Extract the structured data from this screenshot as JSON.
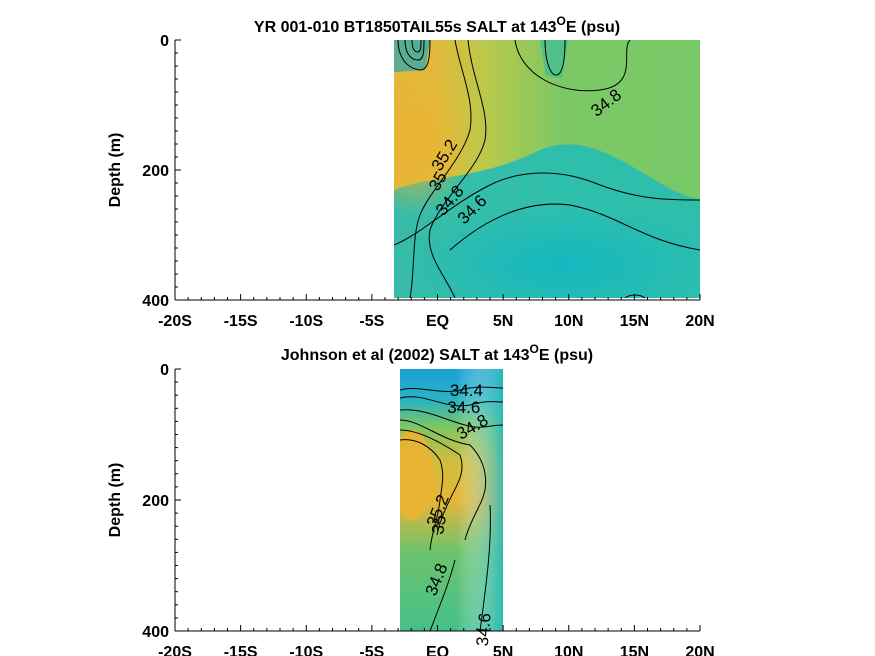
{
  "chart_data": [
    {
      "type": "contour",
      "title_main": "YR 001-010 BT1850TAIL55s SALT at 143",
      "title_sup": "O",
      "title_tail": "E (psu)",
      "xlabel": "",
      "ylabel": "Depth (m)",
      "xlim": [
        -20,
        20
      ],
      "ylim": [
        0,
        400
      ],
      "y_reversed": true,
      "x_ticks": [
        {
          "value": -20,
          "label": "-20S"
        },
        {
          "value": -15,
          "label": "-15S"
        },
        {
          "value": -10,
          "label": "-10S"
        },
        {
          "value": -5,
          "label": "-5S"
        },
        {
          "value": 0,
          "label": "EQ"
        },
        {
          "value": 5,
          "label": "5N"
        },
        {
          "value": 10,
          "label": "10N"
        },
        {
          "value": 15,
          "label": "15N"
        },
        {
          "value": 20,
          "label": "20N"
        }
      ],
      "y_ticks": [
        {
          "value": 0,
          "label": "0"
        },
        {
          "value": 200,
          "label": "200"
        },
        {
          "value": 400,
          "label": "400"
        }
      ],
      "data_extent_x": [
        -3.2,
        20
      ],
      "contour_levels": [
        34.4,
        34.6,
        34.8,
        35,
        35.2
      ],
      "contour_labels": [
        {
          "text": "35.2",
          "lat": 0.6,
          "depth": 178,
          "angle": -58
        },
        {
          "text": "35",
          "lat": 0.1,
          "depth": 218,
          "angle": -60
        },
        {
          "text": "34.8",
          "lat": 1.0,
          "depth": 248,
          "angle": -50
        },
        {
          "text": "34.6",
          "lat": 2.7,
          "depth": 262,
          "angle": -45
        },
        {
          "text": "34.8",
          "lat": 12.9,
          "depth": 98,
          "angle": -38
        }
      ]
    },
    {
      "type": "contour",
      "title_main": "Johnson et al (2002) SALT at 143",
      "title_sup": "O",
      "title_tail": "E (psu)",
      "xlabel": "",
      "ylabel": "Depth (m)",
      "xlim": [
        -20,
        20
      ],
      "ylim": [
        0,
        400
      ],
      "y_reversed": true,
      "x_ticks": [
        {
          "value": -20,
          "label": "-20S"
        },
        {
          "value": -15,
          "label": "-15S"
        },
        {
          "value": -10,
          "label": "-10S"
        },
        {
          "value": -5,
          "label": "-5S"
        },
        {
          "value": 0,
          "label": "EQ"
        },
        {
          "value": 5,
          "label": "5N"
        },
        {
          "value": 10,
          "label": "10N"
        },
        {
          "value": 15,
          "label": "15N"
        },
        {
          "value": 20,
          "label": "20N"
        }
      ],
      "y_ticks": [
        {
          "value": 0,
          "label": "0"
        },
        {
          "value": 200,
          "label": "200"
        },
        {
          "value": 400,
          "label": "400"
        }
      ],
      "data_extent_x": [
        -2.8,
        5.0
      ],
      "contour_levels": [
        34.4,
        34.6,
        34.8,
        35,
        35.2
      ],
      "contour_labels": [
        {
          "text": "34.4",
          "lat": 2.2,
          "depth": 34,
          "angle": 0
        },
        {
          "text": "34.6",
          "lat": 2.0,
          "depth": 60,
          "angle": 0
        },
        {
          "text": "34.8",
          "lat": 2.7,
          "depth": 90,
          "angle": -30
        },
        {
          "text": "35.2",
          "lat": 0.1,
          "depth": 217,
          "angle": -68
        },
        {
          "text": "35",
          "lat": 0.2,
          "depth": 238,
          "angle": -80
        },
        {
          "text": "34.8",
          "lat": 0.0,
          "depth": 322,
          "angle": -68
        },
        {
          "text": "34.6",
          "lat": 3.6,
          "depth": 398,
          "angle": -85
        }
      ]
    }
  ]
}
